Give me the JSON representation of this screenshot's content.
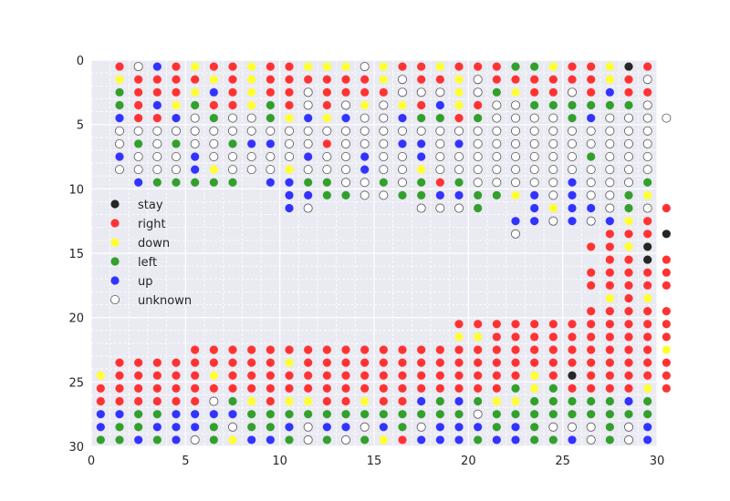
{
  "chart_data": {
    "type": "scatter",
    "title": "",
    "xlabel": "",
    "ylabel": "",
    "xlim": [
      0,
      30
    ],
    "ylim": [
      30,
      0
    ],
    "y_inverted": true,
    "x_ticks": [
      0,
      5,
      10,
      15,
      20,
      25,
      30
    ],
    "y_ticks": [
      0,
      5,
      10,
      15,
      20,
      25,
      30
    ],
    "grid": true,
    "background": "#eaeaf2",
    "legend": {
      "placement": "left-middle",
      "entries": [
        {
          "key": "S",
          "label": "stay",
          "color": "#262626",
          "hollow": false
        },
        {
          "key": "R",
          "label": "right",
          "color": "#ff3333",
          "hollow": false
        },
        {
          "key": "D",
          "label": "down",
          "color": "#ffff33",
          "hollow": false
        },
        {
          "key": "L",
          "label": "left",
          "color": "#33a02c",
          "hollow": false
        },
        {
          "key": "U",
          "label": "up",
          "color": "#3333ff",
          "hollow": false
        },
        {
          "key": "O",
          "label": "unknown",
          "color": "#ffffff",
          "hollow": true
        }
      ]
    },
    "cell_origin": [
      0.5,
      0.5
    ],
    "grid_rows": [
      ".ROURDRRDRRDDDODRRDRRRLLDRRDSR",
      ".DRRRRDRDRRRRRRDORRDORRRRRRDRO",
      ".LRRRDURDRRORRRROOODOLDRRORURR",
      ".LRUDLRRDLRORODODRUDROOLLLLLLO",
      ".URRUOLOOLDUDUOOULLRLOOOOLUOOOO",
      ".OOOOOOOOOOOOOOOOOOOOOOOOOOOOO",
      ".OLOLOOLUUOOROOOUUOUOOOOOOOOOO",
      ".UOOOUOOOOOUOOUOOUOOOOOOOOLOOO",
      ".OOOOUDOOODOOOUOODOOOOOOOOOOOO",
      "..ULLLLL.UULLOOLOLRLOOOOOUOOOL",
      "..........UULLOOLLUULLDUOUOOLD",
      "..........UO.....OOOL..UDUUOLOR",
      "......................UUOUOUDR.",
      "......................O....RRRS",
      "..........................RRDS.",
      "...........................RRSR",
      "..........................RRRRR",
      "..........................RRRRR",
      "...........................DRD.",
      "..........................RRRRR",
      "...................RRRRRRRRRRRR",
      "...................DDRRRRRRRRRR",
      ".....RRRRRRRRRRRRRRRRRRRRRRRRRD",
      ".RRRRRRRRRDRRRRRRRRRRRRRRRRRRRR",
      "DRRRRRDRRRRRRRRRRRRRRRRDRSRRRRR",
      "RRRRRRRRRRRRRRRRRRRRRRLDLRRRRDR",
      "RRRRRROLDRDDRRDRRULULDDLLLLLUL",
      "UULLUUUULLLLLLLLLLLLOLLLLLLLLL",
      "ULLUUULOLLUOUUOULOUUULULOOOLOU",
      "LLULUOLDUULOLOLDRUUULUULLUOLOU"
    ]
  }
}
